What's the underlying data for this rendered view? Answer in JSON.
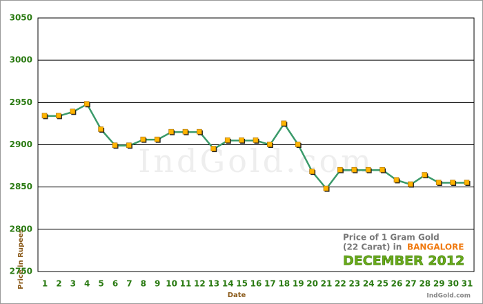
{
  "chart_data": {
    "type": "line",
    "categories": [
      1,
      2,
      3,
      4,
      5,
      6,
      7,
      8,
      9,
      10,
      11,
      12,
      13,
      14,
      15,
      16,
      17,
      18,
      19,
      20,
      21,
      22,
      23,
      24,
      25,
      26,
      27,
      28,
      29,
      30,
      31
    ],
    "values": [
      2934,
      2934,
      2939,
      2948,
      2918,
      2899,
      2899,
      2906,
      2906,
      2915,
      2915,
      2915,
      2895,
      2905,
      2905,
      2905,
      2900,
      2925,
      2900,
      2868,
      2848,
      2870,
      2870,
      2870,
      2870,
      2858,
      2853,
      2864,
      2855,
      2855,
      2855
    ],
    "color": "#3a9a6a",
    "marker_color": "#ffb400",
    "ylim": [
      2750,
      3050
    ],
    "yticks": [
      2750,
      2800,
      2850,
      2900,
      2950,
      3000,
      3050
    ],
    "grid": true,
    "x_label": "Date",
    "y_label": "Price in Rupees",
    "annotation": {
      "line1": "Price of 1 Gram Gold",
      "line2": "(22 Carat) in",
      "city": "BANGALORE",
      "month": "DECEMBER 2012",
      "source": "IndGold.com"
    }
  }
}
